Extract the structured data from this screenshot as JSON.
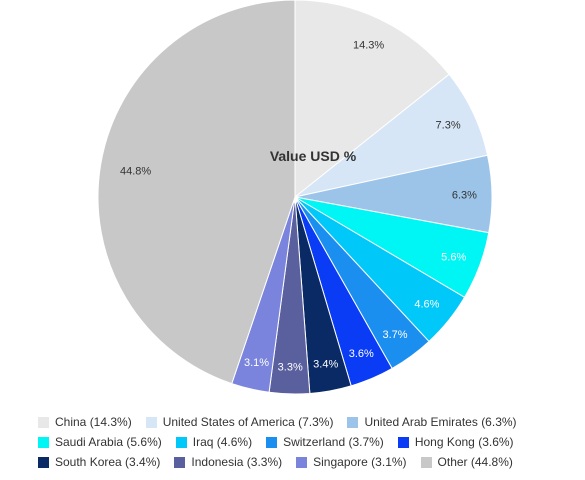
{
  "chart_data": {
    "type": "pie",
    "title": "Value USD %",
    "start_angle_deg": 0,
    "direction": "clockwise",
    "slices": [
      {
        "label": "China",
        "value": 14.3,
        "display": "14.3%",
        "legend": "China (14.3%)",
        "color": "#e8e8e8",
        "label_color": "#333333"
      },
      {
        "label": "United States of America",
        "value": 7.3,
        "display": "7.3%",
        "legend": "United States of America (7.3%)",
        "color": "#d6e6f7",
        "label_color": "#333333"
      },
      {
        "label": "United Arab Emirates",
        "value": 6.3,
        "display": "6.3%",
        "legend": "United Arab Emirates (6.3%)",
        "color": "#9cc4e8",
        "label_color": "#333333"
      },
      {
        "label": "Saudi Arabia",
        "value": 5.6,
        "display": "5.6%",
        "legend": "Saudi Arabia (5.6%)",
        "color": "#00f5f5",
        "label_color": "#ffffff"
      },
      {
        "label": "Iraq",
        "value": 4.6,
        "display": "4.6%",
        "legend": "Iraq (4.6%)",
        "color": "#00c8f8",
        "label_color": "#ffffff"
      },
      {
        "label": "Switzerland",
        "value": 3.7,
        "display": "3.7%",
        "legend": "Switzerland (3.7%)",
        "color": "#1a8ff0",
        "label_color": "#ffffff"
      },
      {
        "label": "Hong Kong",
        "value": 3.6,
        "display": "3.6%",
        "legend": "Hong Kong (3.6%)",
        "color": "#0a3cf5",
        "label_color": "#ffffff"
      },
      {
        "label": "South Korea",
        "value": 3.4,
        "display": "3.4%",
        "legend": "South Korea (3.4%)",
        "color": "#0a2a66",
        "label_color": "#ffffff"
      },
      {
        "label": "Indonesia",
        "value": 3.3,
        "display": "3.3%",
        "legend": "Indonesia (3.3%)",
        "color": "#5a5f9e",
        "label_color": "#ffffff"
      },
      {
        "label": "Singapore",
        "value": 3.1,
        "display": "3.1%",
        "legend": "Singapore (3.1%)",
        "color": "#7a84dc",
        "label_color": "#ffffff"
      },
      {
        "label": "Other",
        "value": 44.8,
        "display": "44.8%",
        "legend": "Other (44.8%)",
        "color": "#c8c8c8",
        "label_color": "#333333"
      }
    ],
    "legend_placement": "bottom"
  }
}
